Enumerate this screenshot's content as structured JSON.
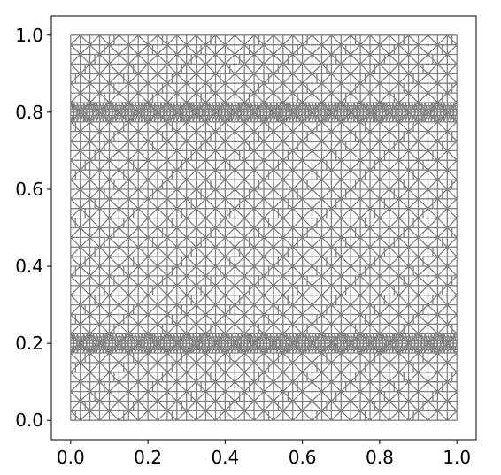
{
  "chart_data": {
    "type": "mesh",
    "color": "#808080",
    "xlim": [
      -0.05,
      1.05
    ],
    "ylim": [
      -0.05,
      1.05
    ],
    "xticks": [
      {
        "value": 0,
        "label": "0.0"
      },
      0.2,
      0.4,
      0.6,
      0.8,
      {
        "value": 1,
        "label": "1.0"
      }
    ],
    "yticks": [
      {
        "value": 0,
        "label": "0.0"
      },
      0.2,
      0.4,
      0.6,
      0.8,
      {
        "value": 1,
        "label": "1.0"
      }
    ]
  }
}
